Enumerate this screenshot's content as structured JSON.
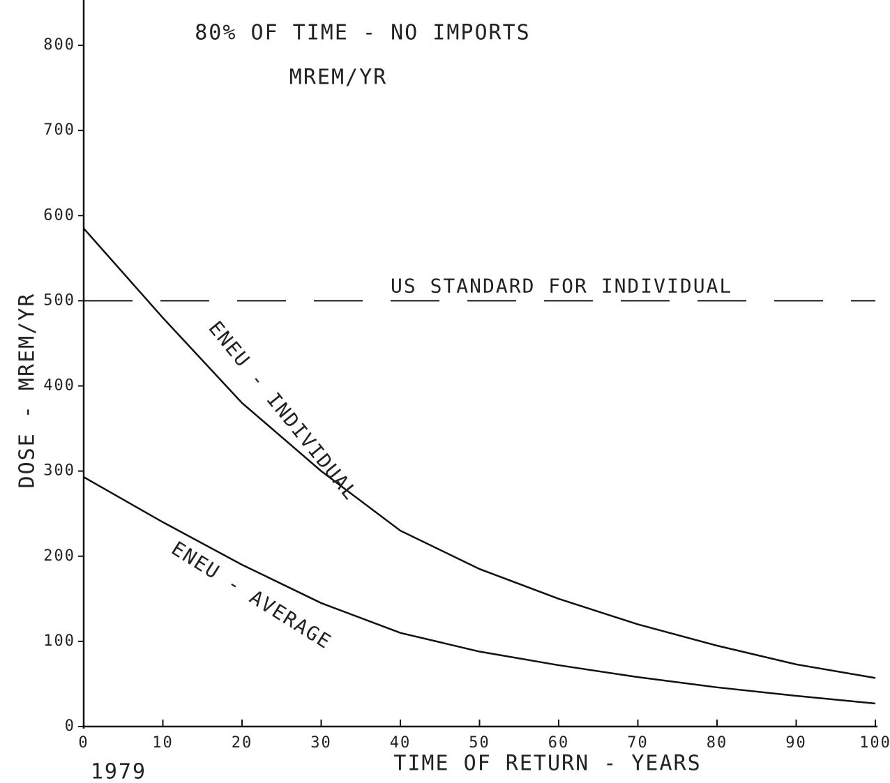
{
  "chart_data": {
    "type": "line",
    "title": "80% OF TIME - NO IMPORTS",
    "subtitle": "MREM/YR",
    "x_label": "TIME OF RETURN - YEARS",
    "y_label": "DOSE - MREM/YR",
    "x_start_label": "1979",
    "x": [
      0,
      10,
      20,
      30,
      40,
      50,
      60,
      70,
      80,
      90,
      100
    ],
    "series": [
      {
        "name": "ENEU - INDIVIDUAL",
        "color": "#111111",
        "values": [
          585,
          480,
          380,
          300,
          230,
          185,
          150,
          120,
          95,
          73,
          57
        ]
      },
      {
        "name": "ENEU - AVERAGE",
        "color": "#111111",
        "values": [
          293,
          240,
          190,
          145,
          110,
          88,
          72,
          58,
          46,
          36,
          27
        ]
      }
    ],
    "reference_line": {
      "value": 500,
      "label": "US STANDARD FOR INDIVIDUAL"
    },
    "xlim": [
      0,
      100
    ],
    "xticks": [
      0,
      10,
      20,
      30,
      40,
      50,
      60,
      70,
      80,
      90,
      100
    ],
    "ylim": [
      0,
      800
    ],
    "yticks": [
      0,
      100,
      200,
      300,
      400,
      500,
      600,
      700,
      800
    ],
    "grid": false
  }
}
